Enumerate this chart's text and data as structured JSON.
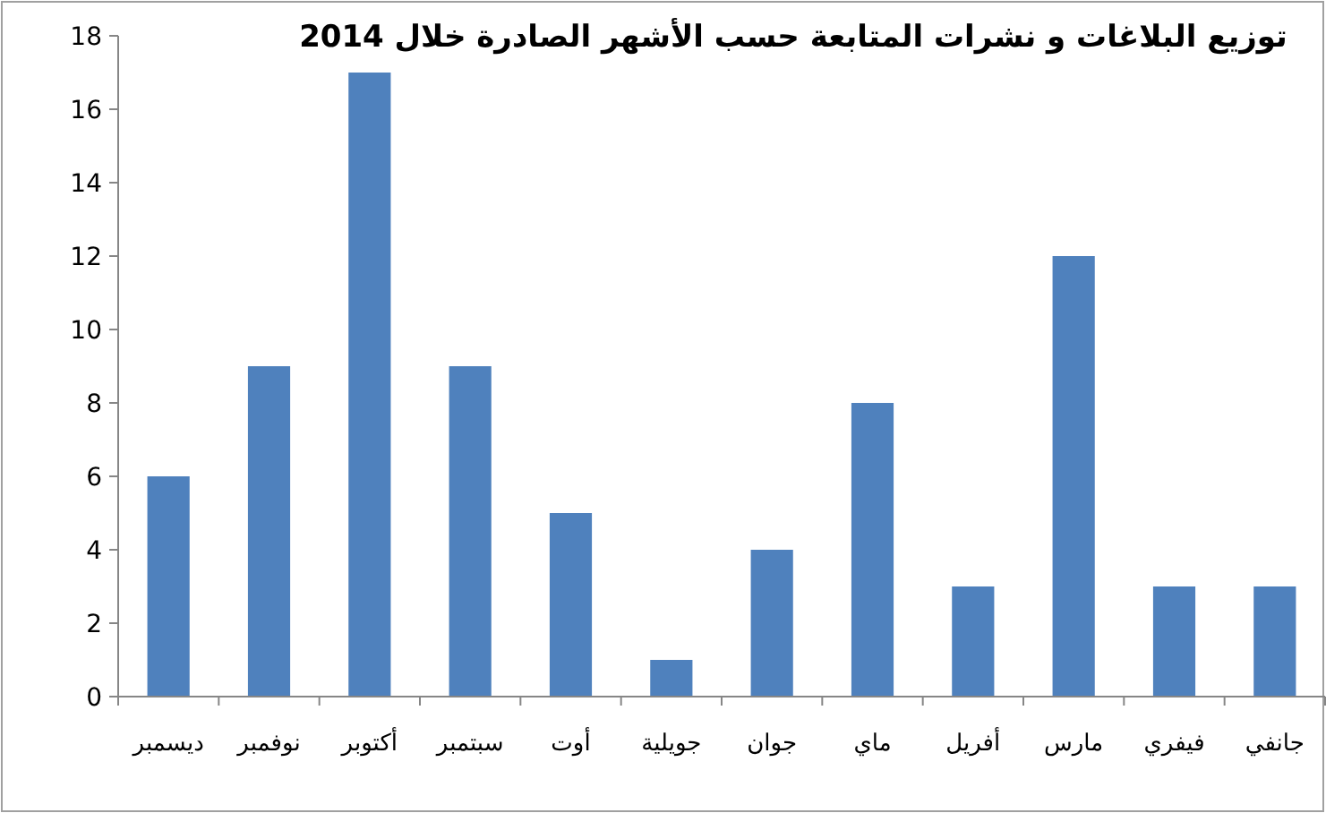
{
  "chart_data": {
    "type": "bar",
    "title": "توزيع البلاغات و نشرات المتابعة حسب الأشهر الصادرة خلال 2014",
    "categories": [
      "ديسمبر",
      "نوفمبر",
      "أكتوبر",
      "سبتمبر",
      "أوت",
      "جويلية",
      "جوان",
      "ماي",
      "أفريل",
      "مارس",
      "فيفري",
      "جانفي"
    ],
    "values": [
      6,
      9,
      17,
      9,
      5,
      1,
      4,
      8,
      3,
      12,
      3,
      3
    ],
    "color": "#4f81bd",
    "ylim": [
      0,
      18
    ],
    "yticks": [
      0,
      2,
      4,
      6,
      8,
      10,
      12,
      14,
      16,
      18
    ],
    "grid": false
  }
}
